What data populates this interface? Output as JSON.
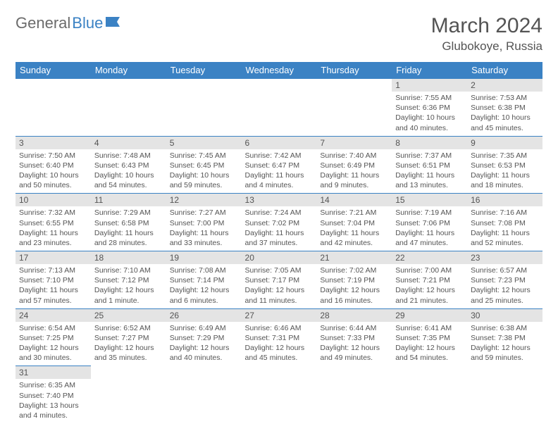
{
  "logo": {
    "part1": "General",
    "part2": "Blue"
  },
  "title": "March 2024",
  "location": "Glubokoye, Russia",
  "colors": {
    "header_bg": "#3b82c4",
    "header_text": "#ffffff",
    "daynum_bg": "#e4e4e4",
    "border": "#3b82c4",
    "body_text": "#545454",
    "page_bg": "#ffffff"
  },
  "daysOfWeek": [
    "Sunday",
    "Monday",
    "Tuesday",
    "Wednesday",
    "Thursday",
    "Friday",
    "Saturday"
  ],
  "weeks": [
    [
      null,
      null,
      null,
      null,
      null,
      {
        "n": "1",
        "sr": "Sunrise: 7:55 AM",
        "ss": "Sunset: 6:36 PM",
        "dl": "Daylight: 10 hours and 40 minutes."
      },
      {
        "n": "2",
        "sr": "Sunrise: 7:53 AM",
        "ss": "Sunset: 6:38 PM",
        "dl": "Daylight: 10 hours and 45 minutes."
      }
    ],
    [
      {
        "n": "3",
        "sr": "Sunrise: 7:50 AM",
        "ss": "Sunset: 6:40 PM",
        "dl": "Daylight: 10 hours and 50 minutes."
      },
      {
        "n": "4",
        "sr": "Sunrise: 7:48 AM",
        "ss": "Sunset: 6:43 PM",
        "dl": "Daylight: 10 hours and 54 minutes."
      },
      {
        "n": "5",
        "sr": "Sunrise: 7:45 AM",
        "ss": "Sunset: 6:45 PM",
        "dl": "Daylight: 10 hours and 59 minutes."
      },
      {
        "n": "6",
        "sr": "Sunrise: 7:42 AM",
        "ss": "Sunset: 6:47 PM",
        "dl": "Daylight: 11 hours and 4 minutes."
      },
      {
        "n": "7",
        "sr": "Sunrise: 7:40 AM",
        "ss": "Sunset: 6:49 PM",
        "dl": "Daylight: 11 hours and 9 minutes."
      },
      {
        "n": "8",
        "sr": "Sunrise: 7:37 AM",
        "ss": "Sunset: 6:51 PM",
        "dl": "Daylight: 11 hours and 13 minutes."
      },
      {
        "n": "9",
        "sr": "Sunrise: 7:35 AM",
        "ss": "Sunset: 6:53 PM",
        "dl": "Daylight: 11 hours and 18 minutes."
      }
    ],
    [
      {
        "n": "10",
        "sr": "Sunrise: 7:32 AM",
        "ss": "Sunset: 6:55 PM",
        "dl": "Daylight: 11 hours and 23 minutes."
      },
      {
        "n": "11",
        "sr": "Sunrise: 7:29 AM",
        "ss": "Sunset: 6:58 PM",
        "dl": "Daylight: 11 hours and 28 minutes."
      },
      {
        "n": "12",
        "sr": "Sunrise: 7:27 AM",
        "ss": "Sunset: 7:00 PM",
        "dl": "Daylight: 11 hours and 33 minutes."
      },
      {
        "n": "13",
        "sr": "Sunrise: 7:24 AM",
        "ss": "Sunset: 7:02 PM",
        "dl": "Daylight: 11 hours and 37 minutes."
      },
      {
        "n": "14",
        "sr": "Sunrise: 7:21 AM",
        "ss": "Sunset: 7:04 PM",
        "dl": "Daylight: 11 hours and 42 minutes."
      },
      {
        "n": "15",
        "sr": "Sunrise: 7:19 AM",
        "ss": "Sunset: 7:06 PM",
        "dl": "Daylight: 11 hours and 47 minutes."
      },
      {
        "n": "16",
        "sr": "Sunrise: 7:16 AM",
        "ss": "Sunset: 7:08 PM",
        "dl": "Daylight: 11 hours and 52 minutes."
      }
    ],
    [
      {
        "n": "17",
        "sr": "Sunrise: 7:13 AM",
        "ss": "Sunset: 7:10 PM",
        "dl": "Daylight: 11 hours and 57 minutes."
      },
      {
        "n": "18",
        "sr": "Sunrise: 7:10 AM",
        "ss": "Sunset: 7:12 PM",
        "dl": "Daylight: 12 hours and 1 minute."
      },
      {
        "n": "19",
        "sr": "Sunrise: 7:08 AM",
        "ss": "Sunset: 7:14 PM",
        "dl": "Daylight: 12 hours and 6 minutes."
      },
      {
        "n": "20",
        "sr": "Sunrise: 7:05 AM",
        "ss": "Sunset: 7:17 PM",
        "dl": "Daylight: 12 hours and 11 minutes."
      },
      {
        "n": "21",
        "sr": "Sunrise: 7:02 AM",
        "ss": "Sunset: 7:19 PM",
        "dl": "Daylight: 12 hours and 16 minutes."
      },
      {
        "n": "22",
        "sr": "Sunrise: 7:00 AM",
        "ss": "Sunset: 7:21 PM",
        "dl": "Daylight: 12 hours and 21 minutes."
      },
      {
        "n": "23",
        "sr": "Sunrise: 6:57 AM",
        "ss": "Sunset: 7:23 PM",
        "dl": "Daylight: 12 hours and 25 minutes."
      }
    ],
    [
      {
        "n": "24",
        "sr": "Sunrise: 6:54 AM",
        "ss": "Sunset: 7:25 PM",
        "dl": "Daylight: 12 hours and 30 minutes."
      },
      {
        "n": "25",
        "sr": "Sunrise: 6:52 AM",
        "ss": "Sunset: 7:27 PM",
        "dl": "Daylight: 12 hours and 35 minutes."
      },
      {
        "n": "26",
        "sr": "Sunrise: 6:49 AM",
        "ss": "Sunset: 7:29 PM",
        "dl": "Daylight: 12 hours and 40 minutes."
      },
      {
        "n": "27",
        "sr": "Sunrise: 6:46 AM",
        "ss": "Sunset: 7:31 PM",
        "dl": "Daylight: 12 hours and 45 minutes."
      },
      {
        "n": "28",
        "sr": "Sunrise: 6:44 AM",
        "ss": "Sunset: 7:33 PM",
        "dl": "Daylight: 12 hours and 49 minutes."
      },
      {
        "n": "29",
        "sr": "Sunrise: 6:41 AM",
        "ss": "Sunset: 7:35 PM",
        "dl": "Daylight: 12 hours and 54 minutes."
      },
      {
        "n": "30",
        "sr": "Sunrise: 6:38 AM",
        "ss": "Sunset: 7:38 PM",
        "dl": "Daylight: 12 hours and 59 minutes."
      }
    ],
    [
      {
        "n": "31",
        "sr": "Sunrise: 6:35 AM",
        "ss": "Sunset: 7:40 PM",
        "dl": "Daylight: 13 hours and 4 minutes."
      },
      null,
      null,
      null,
      null,
      null,
      null
    ]
  ]
}
